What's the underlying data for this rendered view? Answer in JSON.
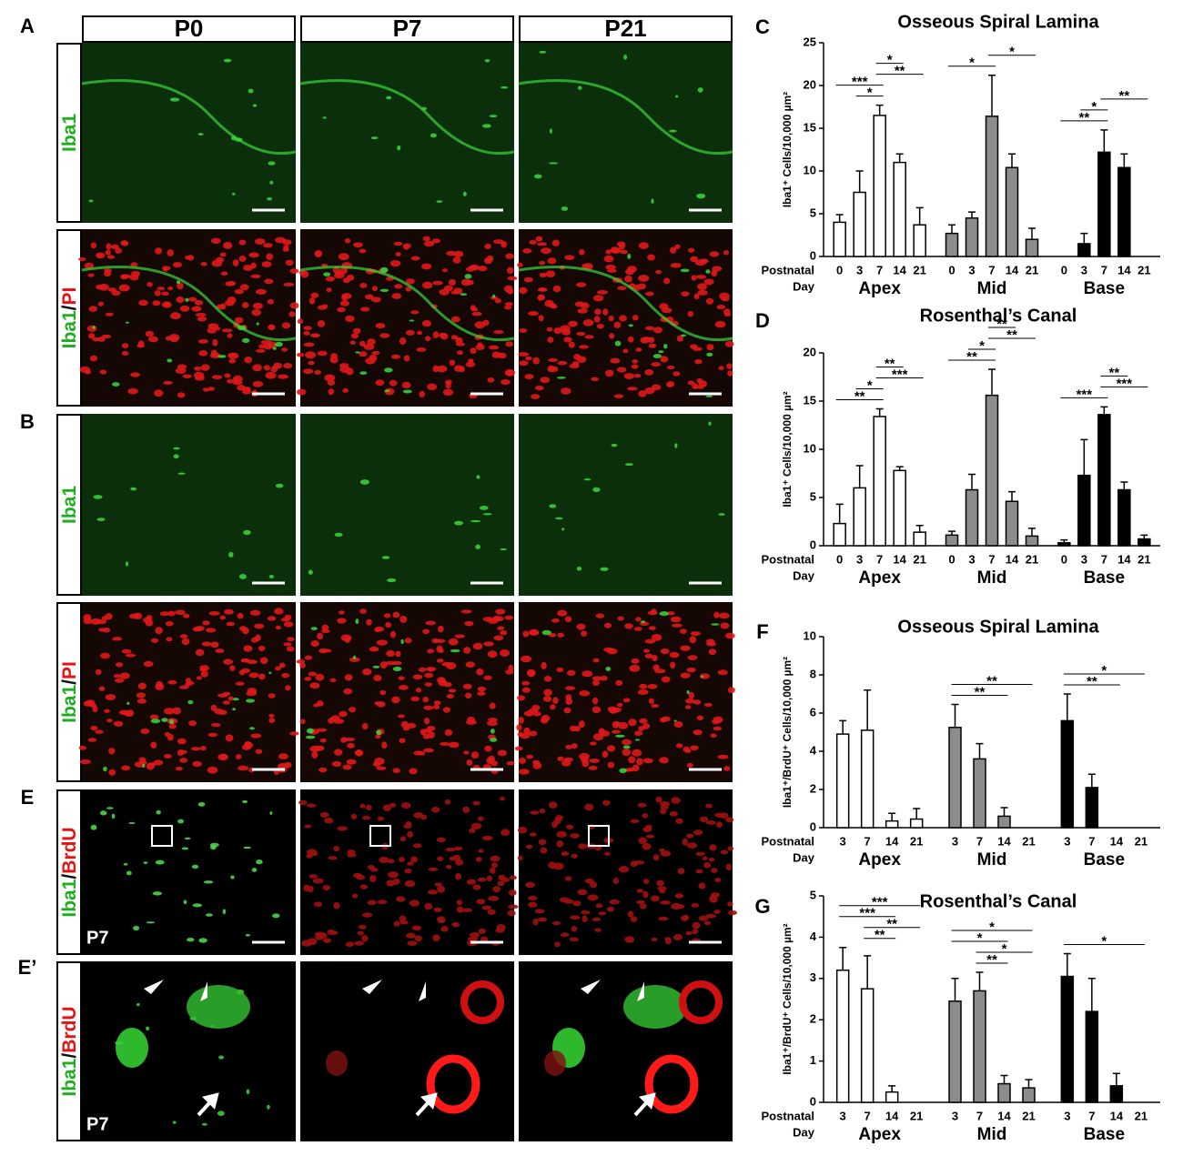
{
  "image_panels": {
    "letters": [
      "A",
      "B",
      "E",
      "E’"
    ],
    "columns": [
      "P0",
      "P7",
      "P21"
    ],
    "rows": [
      {
        "stain": [
          "Iba1"
        ]
      },
      {
        "stain": [
          "Iba1",
          "/",
          "PI"
        ]
      },
      {
        "stain": [
          "Iba1"
        ]
      },
      {
        "stain": [
          "Iba1",
          "/",
          "PI"
        ]
      },
      {
        "stain": [
          "Iba1",
          "/",
          "BrdU"
        ],
        "age": "P7"
      },
      {
        "stain": [
          "Iba1",
          "/",
          "BrdU"
        ],
        "age": "P7"
      }
    ]
  },
  "chart_data": [
    {
      "type": "bar",
      "panel": "C",
      "title": "Osseous Spiral Lamina",
      "y_label": "Iba1⁺ Cells/10,000 µm²",
      "x_label": [
        "Postnatal",
        "Day"
      ],
      "categories": [
        "0",
        "3",
        "7",
        "14",
        "21"
      ],
      "ylim": [
        0,
        25
      ],
      "yticks": [
        0,
        5,
        10,
        15,
        20,
        25
      ],
      "series": [
        {
          "name": "Apex",
          "color": "#ffffff",
          "values": [
            4,
            7.5,
            16.5,
            11,
            3.7
          ],
          "errors": [
            0.9,
            2.5,
            1.2,
            1,
            2
          ],
          "significance": [
            {
              "from": 1,
              "to": 2,
              "label": "*"
            },
            {
              "from": 0,
              "to": 2,
              "label": "***"
            },
            {
              "from": 2,
              "to": 4,
              "label": "**"
            },
            {
              "from": 2,
              "to": 3,
              "label": "*"
            }
          ]
        },
        {
          "name": "Mid",
          "color": "#8c8c8c",
          "values": [
            2.7,
            4.5,
            16.4,
            10.4,
            2
          ],
          "errors": [
            1,
            0.7,
            4.8,
            1.6,
            1.3
          ],
          "significance": [
            {
              "from": 0,
              "to": 2,
              "label": "*"
            },
            {
              "from": 2,
              "to": 4,
              "label": "*"
            }
          ]
        },
        {
          "name": "Base",
          "color": "#000000",
          "values": [
            null,
            1.5,
            12.2,
            10.4,
            null
          ],
          "errors": [
            null,
            1.2,
            2.6,
            1.6,
            null
          ],
          "significance": [
            {
              "from": 0,
              "to": 2,
              "label": "**"
            },
            {
              "from": 1,
              "to": 2,
              "label": "*"
            },
            {
              "from": 2,
              "to": 4,
              "label": "**"
            }
          ]
        }
      ]
    },
    {
      "type": "bar",
      "panel": "D",
      "title": "Rosenthal’s Canal",
      "y_label": "Iba1⁺ Cells/10,000 µm²",
      "x_label": [
        "Postnatal",
        "Day"
      ],
      "categories": [
        "0",
        "3",
        "7",
        "14",
        "21"
      ],
      "ylim": [
        0,
        20
      ],
      "yticks": [
        0,
        5,
        10,
        15,
        20
      ],
      "series": [
        {
          "name": "Apex",
          "color": "#ffffff",
          "values": [
            2.3,
            6,
            13.4,
            7.8,
            1.4
          ],
          "errors": [
            2,
            2.3,
            0.8,
            0.4,
            0.7
          ],
          "significance": [
            {
              "from": 0,
              "to": 2,
              "label": "**"
            },
            {
              "from": 1,
              "to": 2,
              "label": "*"
            },
            {
              "from": 2,
              "to": 4,
              "label": "***"
            },
            {
              "from": 2,
              "to": 3,
              "label": "**"
            }
          ]
        },
        {
          "name": "Mid",
          "color": "#8c8c8c",
          "values": [
            1.1,
            5.8,
            15.6,
            4.6,
            1
          ],
          "errors": [
            0.4,
            1.6,
            2.7,
            1,
            0.8
          ],
          "significance": [
            {
              "from": 0,
              "to": 2,
              "label": "**"
            },
            {
              "from": 1,
              "to": 2,
              "label": "*"
            },
            {
              "from": 2,
              "to": 4,
              "label": "**"
            },
            {
              "from": 2,
              "to": 3,
              "label": "**"
            }
          ]
        },
        {
          "name": "Base",
          "color": "#000000",
          "values": [
            0.3,
            7.3,
            13.6,
            5.8,
            0.7
          ],
          "errors": [
            0.3,
            3.7,
            0.8,
            0.8,
            0.4
          ],
          "significance": [
            {
              "from": 0,
              "to": 2,
              "label": "***"
            },
            {
              "from": 2,
              "to": 4,
              "label": "***"
            },
            {
              "from": 2,
              "to": 3,
              "label": "**"
            }
          ]
        }
      ]
    },
    {
      "type": "bar",
      "panel": "F",
      "title": "Osseous Spiral Lamina",
      "y_label": "Iba1⁺/BrdU⁺ Cells/10,000 µm²",
      "x_label": [
        "Postnatal",
        "Day"
      ],
      "categories": [
        "3",
        "7",
        "14",
        "21"
      ],
      "ylim": [
        0,
        10
      ],
      "yticks": [
        0,
        2,
        4,
        6,
        8,
        10
      ],
      "series": [
        {
          "name": "Apex",
          "color": "#ffffff",
          "values": [
            4.9,
            5.1,
            0.35,
            0.45
          ],
          "errors": [
            0.7,
            2.1,
            0.4,
            0.55
          ],
          "significance": []
        },
        {
          "name": "Mid",
          "color": "#8c8c8c",
          "values": [
            5.25,
            3.6,
            0.6,
            null
          ],
          "errors": [
            1.2,
            0.8,
            0.45,
            null
          ],
          "significance": [
            {
              "from": 0,
              "to": 2,
              "label": "**"
            },
            {
              "from": 0,
              "to": 3,
              "label": "**"
            }
          ]
        },
        {
          "name": "Base",
          "color": "#000000",
          "values": [
            5.6,
            2.1,
            null,
            null
          ],
          "errors": [
            1.4,
            0.7,
            null,
            null
          ],
          "significance": [
            {
              "from": 0,
              "to": 2,
              "label": "**"
            },
            {
              "from": 0,
              "to": 3,
              "label": "*"
            }
          ]
        }
      ]
    },
    {
      "type": "bar",
      "panel": "G",
      "title": "Rosenthal’s Canal",
      "y_label": "Iba1⁺/BrdU⁺ Cells/10,000 µm²",
      "x_label": [
        "Postnatal",
        "Day"
      ],
      "categories": [
        "3",
        "7",
        "14",
        "21"
      ],
      "ylim": [
        0,
        5
      ],
      "yticks": [
        0,
        1,
        2,
        3,
        4,
        5
      ],
      "series": [
        {
          "name": "Apex",
          "color": "#ffffff",
          "values": [
            3.2,
            2.75,
            0.25,
            null
          ],
          "errors": [
            0.55,
            0.8,
            0.15,
            null
          ],
          "significance": [
            {
              "from": 1,
              "to": 2,
              "label": "**"
            },
            {
              "from": 1,
              "to": 3,
              "label": "**"
            },
            {
              "from": 0,
              "to": 2,
              "label": "***"
            },
            {
              "from": 0,
              "to": 3,
              "label": "***"
            }
          ]
        },
        {
          "name": "Mid",
          "color": "#8c8c8c",
          "values": [
            2.45,
            2.7,
            0.45,
            0.35
          ],
          "errors": [
            0.55,
            0.45,
            0.2,
            0.2
          ],
          "significance": [
            {
              "from": 1,
              "to": 2,
              "label": "**"
            },
            {
              "from": 1,
              "to": 3,
              "label": "*"
            },
            {
              "from": 0,
              "to": 2,
              "label": "*"
            },
            {
              "from": 0,
              "to": 3,
              "label": "*"
            }
          ]
        },
        {
          "name": "Base",
          "color": "#000000",
          "values": [
            3.05,
            2.2,
            0.4,
            null
          ],
          "errors": [
            0.55,
            0.8,
            0.3,
            null
          ],
          "significance": [
            {
              "from": 0,
              "to": 3,
              "label": "*"
            }
          ]
        }
      ]
    }
  ]
}
